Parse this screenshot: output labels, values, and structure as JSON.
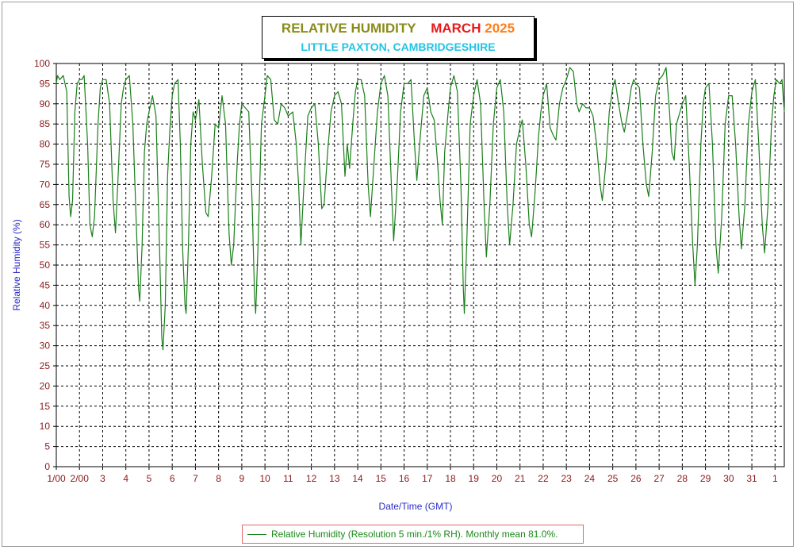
{
  "chart_data": {
    "type": "line",
    "title": {
      "part1": "RELATIVE HUMIDITY",
      "part2": "MARCH",
      "part3": "2025",
      "subtitle": "LITTLE PAXTON, CAMBRIDGESHIRE"
    },
    "xlabel": "Date/Time (GMT)",
    "ylabel": "Relative Humidity (%)",
    "ylim": [
      0,
      100
    ],
    "ytick_step": 5,
    "x_range_days": [
      1,
      32.4
    ],
    "x_tick_labels": [
      "1/00",
      "2/00",
      "3",
      "4",
      "5",
      "6",
      "7",
      "8",
      "9",
      "10",
      "11",
      "12",
      "13",
      "14",
      "15",
      "16",
      "17",
      "18",
      "19",
      "20",
      "21",
      "22",
      "23",
      "24",
      "25",
      "26",
      "27",
      "28",
      "29",
      "30",
      "31",
      "1"
    ],
    "grid": true,
    "legend_position": "bottom",
    "colors": {
      "line": "#1a7f1a",
      "axis_text": "#8b1a1a",
      "label_text": "#2a2ac8",
      "title_part1": "#8b8b1a",
      "title_part2": "#e8191b",
      "title_part3": "#ff7f1a",
      "subtitle": "#22c4e4"
    },
    "series": [
      {
        "name": "Relative Humidity (Resolution 5 min./1% RH). Monthly mean 81.0%.",
        "points": [
          [
            1.0,
            95
          ],
          [
            1.05,
            97
          ],
          [
            1.15,
            96
          ],
          [
            1.3,
            97
          ],
          [
            1.45,
            93
          ],
          [
            1.55,
            67
          ],
          [
            1.62,
            62
          ],
          [
            1.7,
            66
          ],
          [
            1.8,
            88
          ],
          [
            1.9,
            95
          ],
          [
            2.0,
            96
          ],
          [
            2.1,
            96
          ],
          [
            2.2,
            97
          ],
          [
            2.35,
            80
          ],
          [
            2.45,
            60
          ],
          [
            2.55,
            57
          ],
          [
            2.65,
            62
          ],
          [
            2.8,
            85
          ],
          [
            2.9,
            94
          ],
          [
            3.0,
            96
          ],
          [
            3.15,
            96
          ],
          [
            3.3,
            90
          ],
          [
            3.45,
            66
          ],
          [
            3.55,
            58
          ],
          [
            3.65,
            70
          ],
          [
            3.8,
            90
          ],
          [
            3.9,
            94
          ],
          [
            4.0,
            96
          ],
          [
            4.15,
            97
          ],
          [
            4.3,
            85
          ],
          [
            4.45,
            60
          ],
          [
            4.55,
            44
          ],
          [
            4.6,
            41
          ],
          [
            4.7,
            55
          ],
          [
            4.8,
            78
          ],
          [
            4.9,
            85
          ],
          [
            5.0,
            88
          ],
          [
            5.15,
            92
          ],
          [
            5.3,
            87
          ],
          [
            5.45,
            55
          ],
          [
            5.55,
            32
          ],
          [
            5.6,
            29
          ],
          [
            5.7,
            40
          ],
          [
            5.8,
            72
          ],
          [
            5.9,
            84
          ],
          [
            6.0,
            92
          ],
          [
            6.1,
            95
          ],
          [
            6.25,
            96
          ],
          [
            6.35,
            80
          ],
          [
            6.45,
            54
          ],
          [
            6.55,
            40
          ],
          [
            6.6,
            38
          ],
          [
            6.7,
            55
          ],
          [
            6.8,
            80
          ],
          [
            6.9,
            88
          ],
          [
            7.0,
            86
          ],
          [
            7.15,
            91
          ],
          [
            7.3,
            75
          ],
          [
            7.45,
            63
          ],
          [
            7.55,
            62
          ],
          [
            7.7,
            72
          ],
          [
            7.85,
            85
          ],
          [
            8.0,
            84
          ],
          [
            8.15,
            92
          ],
          [
            8.3,
            85
          ],
          [
            8.45,
            58
          ],
          [
            8.55,
            50
          ],
          [
            8.65,
            55
          ],
          [
            8.8,
            75
          ],
          [
            8.9,
            85
          ],
          [
            9.0,
            90
          ],
          [
            9.15,
            89
          ],
          [
            9.3,
            88
          ],
          [
            9.45,
            65
          ],
          [
            9.55,
            42
          ],
          [
            9.6,
            38
          ],
          [
            9.7,
            55
          ],
          [
            9.85,
            85
          ],
          [
            10.0,
            92
          ],
          [
            10.1,
            97
          ],
          [
            10.25,
            96
          ],
          [
            10.4,
            86
          ],
          [
            10.55,
            85
          ],
          [
            10.7,
            90
          ],
          [
            10.85,
            89
          ],
          [
            11.0,
            87
          ],
          [
            11.2,
            88
          ],
          [
            11.35,
            80
          ],
          [
            11.45,
            70
          ],
          [
            11.55,
            55
          ],
          [
            11.7,
            72
          ],
          [
            11.85,
            87
          ],
          [
            12.0,
            89
          ],
          [
            12.15,
            90
          ],
          [
            12.3,
            80
          ],
          [
            12.45,
            64
          ],
          [
            12.55,
            65
          ],
          [
            12.7,
            78
          ],
          [
            12.85,
            88
          ],
          [
            13.0,
            92
          ],
          [
            13.15,
            93
          ],
          [
            13.3,
            90
          ],
          [
            13.45,
            72
          ],
          [
            13.55,
            80
          ],
          [
            13.65,
            74
          ],
          [
            13.8,
            86
          ],
          [
            13.9,
            93
          ],
          [
            14.0,
            96
          ],
          [
            14.15,
            96
          ],
          [
            14.3,
            92
          ],
          [
            14.45,
            70
          ],
          [
            14.55,
            62
          ],
          [
            14.7,
            75
          ],
          [
            14.85,
            88
          ],
          [
            15.0,
            95
          ],
          [
            15.15,
            97
          ],
          [
            15.3,
            92
          ],
          [
            15.45,
            70
          ],
          [
            15.55,
            56
          ],
          [
            15.7,
            70
          ],
          [
            15.85,
            88
          ],
          [
            16.0,
            95
          ],
          [
            16.15,
            95
          ],
          [
            16.3,
            96
          ],
          [
            16.45,
            80
          ],
          [
            16.55,
            71
          ],
          [
            16.7,
            82
          ],
          [
            16.85,
            92
          ],
          [
            17.0,
            94
          ],
          [
            17.15,
            88
          ],
          [
            17.3,
            86
          ],
          [
            17.45,
            75
          ],
          [
            17.55,
            66
          ],
          [
            17.65,
            60
          ],
          [
            17.75,
            78
          ],
          [
            17.9,
            88
          ],
          [
            18.0,
            94
          ],
          [
            18.15,
            97
          ],
          [
            18.3,
            93
          ],
          [
            18.45,
            70
          ],
          [
            18.55,
            45
          ],
          [
            18.6,
            38
          ],
          [
            18.7,
            55
          ],
          [
            18.85,
            85
          ],
          [
            19.0,
            92
          ],
          [
            19.15,
            96
          ],
          [
            19.3,
            90
          ],
          [
            19.45,
            65
          ],
          [
            19.55,
            52
          ],
          [
            19.7,
            65
          ],
          [
            19.85,
            85
          ],
          [
            20.0,
            94
          ],
          [
            20.15,
            96
          ],
          [
            20.3,
            88
          ],
          [
            20.45,
            65
          ],
          [
            20.55,
            55
          ],
          [
            20.7,
            65
          ],
          [
            20.85,
            80
          ],
          [
            21.0,
            84
          ],
          [
            21.1,
            86
          ],
          [
            21.25,
            75
          ],
          [
            21.4,
            60
          ],
          [
            21.5,
            57
          ],
          [
            21.65,
            68
          ],
          [
            21.8,
            82
          ],
          [
            21.9,
            88
          ],
          [
            22.0,
            92
          ],
          [
            22.15,
            95
          ],
          [
            22.3,
            84
          ],
          [
            22.45,
            82
          ],
          [
            22.55,
            81
          ],
          [
            22.7,
            90
          ],
          [
            22.85,
            94
          ],
          [
            23.0,
            96
          ],
          [
            23.15,
            99
          ],
          [
            23.3,
            98
          ],
          [
            23.45,
            90
          ],
          [
            23.55,
            88
          ],
          [
            23.7,
            90
          ],
          [
            23.85,
            89
          ],
          [
            24.0,
            89
          ],
          [
            24.15,
            87
          ],
          [
            24.3,
            80
          ],
          [
            24.45,
            70
          ],
          [
            24.55,
            66
          ],
          [
            24.7,
            75
          ],
          [
            24.85,
            88
          ],
          [
            25.0,
            94
          ],
          [
            25.1,
            96
          ],
          [
            25.25,
            90
          ],
          [
            25.4,
            85
          ],
          [
            25.5,
            83
          ],
          [
            25.65,
            88
          ],
          [
            25.8,
            94
          ],
          [
            25.9,
            96
          ],
          [
            26.0,
            95
          ],
          [
            26.15,
            94
          ],
          [
            26.3,
            80
          ],
          [
            26.45,
            70
          ],
          [
            26.55,
            67
          ],
          [
            26.7,
            78
          ],
          [
            26.85,
            92
          ],
          [
            27.0,
            96
          ],
          [
            27.15,
            97
          ],
          [
            27.3,
            99
          ],
          [
            27.45,
            88
          ],
          [
            27.55,
            78
          ],
          [
            27.65,
            76
          ],
          [
            27.75,
            85
          ],
          [
            27.9,
            88
          ],
          [
            28.0,
            90
          ],
          [
            28.15,
            92
          ],
          [
            28.3,
            75
          ],
          [
            28.45,
            55
          ],
          [
            28.55,
            45
          ],
          [
            28.65,
            55
          ],
          [
            28.8,
            80
          ],
          [
            28.9,
            90
          ],
          [
            29.0,
            94
          ],
          [
            29.15,
            95
          ],
          [
            29.3,
            80
          ],
          [
            29.45,
            55
          ],
          [
            29.55,
            48
          ],
          [
            29.7,
            62
          ],
          [
            29.85,
            85
          ],
          [
            30.0,
            92
          ],
          [
            30.15,
            92
          ],
          [
            30.3,
            80
          ],
          [
            30.45,
            62
          ],
          [
            30.55,
            54
          ],
          [
            30.7,
            65
          ],
          [
            30.85,
            85
          ],
          [
            31.0,
            93
          ],
          [
            31.15,
            96
          ],
          [
            31.3,
            80
          ],
          [
            31.45,
            60
          ],
          [
            31.55,
            53
          ],
          [
            31.7,
            65
          ],
          [
            31.85,
            85
          ],
          [
            31.95,
            92
          ],
          [
            32.05,
            96
          ],
          [
            32.2,
            95
          ],
          [
            32.3,
            96
          ],
          [
            32.4,
            88
          ]
        ]
      }
    ]
  }
}
